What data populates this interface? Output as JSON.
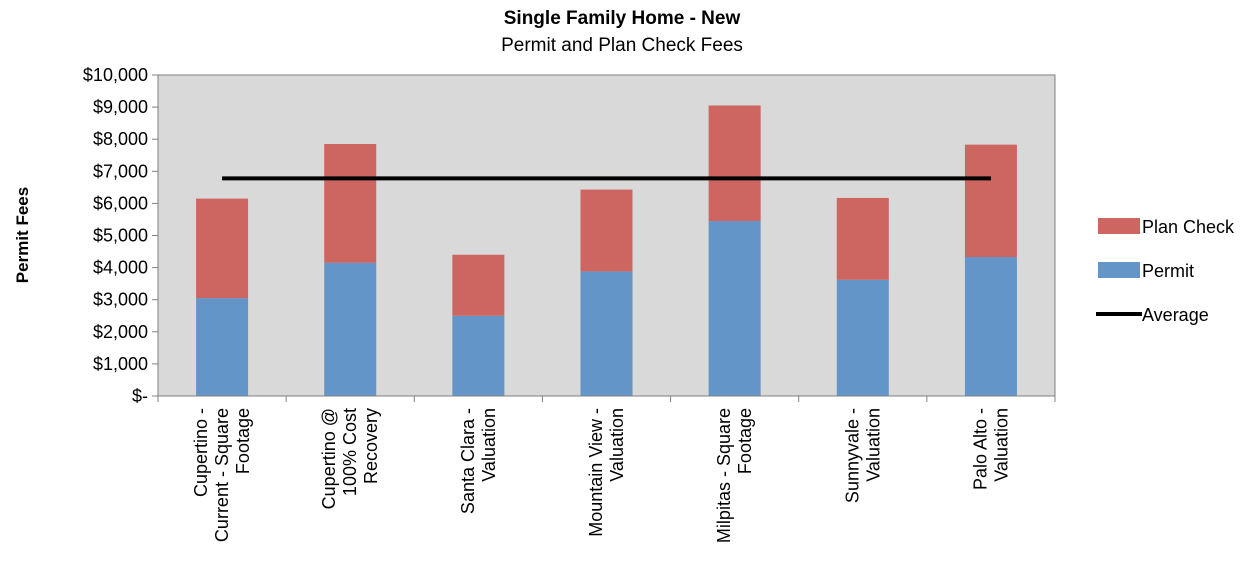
{
  "chart_data": {
    "type": "bar",
    "stacked": true,
    "title": "Single Family Home - New",
    "subtitle": "Permit and Plan Check Fees",
    "ylabel": "Permit Fees",
    "xlabel": "",
    "ylim": [
      0,
      10000
    ],
    "yticks": [
      0,
      1000,
      2000,
      3000,
      4000,
      5000,
      6000,
      7000,
      8000,
      9000,
      10000
    ],
    "ytick_labels": [
      "$-",
      "$1,000",
      "$2,000",
      "$3,000",
      "$4,000",
      "$5,000",
      "$6,000",
      "$7,000",
      "$8,000",
      "$9,000",
      "$10,000"
    ],
    "categories": [
      [
        "Cupertino -",
        "Current - Square",
        "Footage"
      ],
      [
        "Cupertino @",
        "100% Cost",
        "Recovery"
      ],
      [
        "Santa Clara -",
        "Valuation"
      ],
      [
        "Mountain View -",
        "Valuation"
      ],
      [
        "Milpitas - Square",
        "Footage"
      ],
      [
        "Sunnyvale -",
        "Valuation"
      ],
      [
        "Palo Alto -",
        "Valuation"
      ]
    ],
    "series": [
      {
        "name": "Permit",
        "color": "#6495c9",
        "values": [
          3050,
          4150,
          2500,
          3880,
          5450,
          3620,
          4330
        ]
      },
      {
        "name": "Plan Check",
        "color": "#cd6560",
        "values": [
          3100,
          3700,
          1900,
          2550,
          3600,
          2550,
          3500
        ]
      },
      {
        "name": "Average",
        "color": "#000000",
        "type": "line",
        "values": [
          6780,
          6780,
          6780,
          6780,
          6780,
          6780,
          6780
        ]
      }
    ],
    "legend_order": [
      "Plan Check",
      "Permit",
      "Average"
    ],
    "legend_position": "right",
    "grid": false,
    "plot_background": "#d9d9d9"
  }
}
